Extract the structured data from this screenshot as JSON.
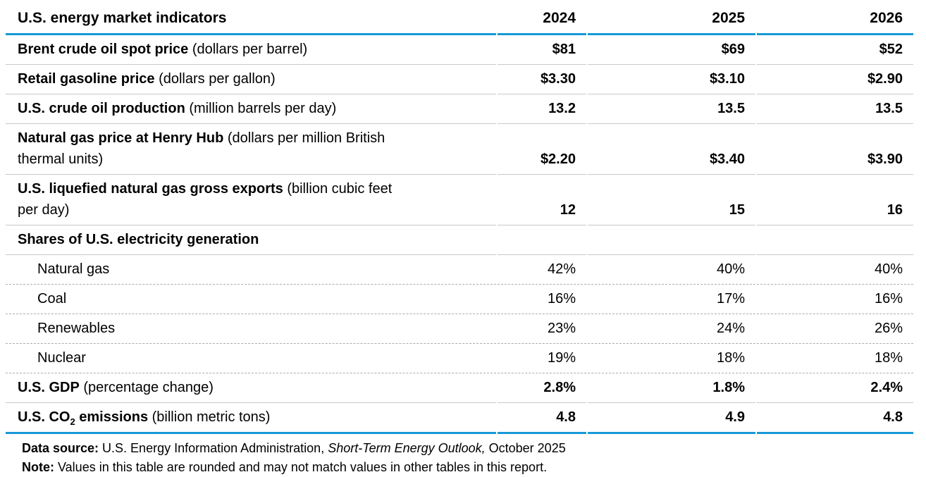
{
  "chart_data": {
    "type": "table",
    "title": "U.S. energy market indicators",
    "columns": [
      "2024",
      "2025",
      "2026"
    ],
    "rows": [
      {
        "label": "Brent crude oil spot price",
        "unit": " (dollars per barrel)",
        "values": [
          "$81",
          "$69",
          "$52"
        ]
      },
      {
        "label": "Retail gasoline price",
        "unit": " (dollars per gallon)",
        "values": [
          "$3.30",
          "$3.10",
          "$2.90"
        ]
      },
      {
        "label": "U.S. crude oil production",
        "unit": " (million barrels per day)",
        "values": [
          "13.2",
          "13.5",
          "13.5"
        ]
      },
      {
        "label": "Natural gas price at Henry Hub",
        "unit": " (dollars per million British\nthermal units)",
        "values": [
          "$2.20",
          "$3.40",
          "$3.90"
        ]
      },
      {
        "label": "U.S. liquefied natural gas gross exports",
        "unit": " (billion cubic feet\nper day)",
        "values": [
          "12",
          "15",
          "16"
        ]
      },
      {
        "label": "Shares of U.S. electricity generation",
        "unit": "",
        "values": []
      },
      {
        "label": "Natural gas",
        "values": [
          "42%",
          "40%",
          "40%"
        ]
      },
      {
        "label": "Coal",
        "values": [
          "16%",
          "17%",
          "16%"
        ]
      },
      {
        "label": "Renewables",
        "values": [
          "23%",
          "24%",
          "26%"
        ]
      },
      {
        "label": "Nuclear",
        "values": [
          "19%",
          "18%",
          "18%"
        ]
      },
      {
        "label": "U.S. GDP",
        "unit": " (percentage change)",
        "values": [
          "2.8%",
          "1.8%",
          "2.4%"
        ]
      },
      {
        "label_pre": "U.S. CO",
        "label_sub": "2",
        "label_post": " emissions",
        "unit": " (billion metric tons)",
        "values": [
          "4.8",
          "4.9",
          "4.8"
        ]
      }
    ],
    "accent_color": "#1899d6"
  },
  "footer": {
    "source_label": "Data source:",
    "source_text": " U.S. Energy Information Administration, ",
    "source_italic": "Short-Term Energy Outlook,",
    "source_date": " October 2025",
    "note_label": "Note:",
    "note_text": " Values in this table are rounded and may not match values in other tables in this report."
  }
}
